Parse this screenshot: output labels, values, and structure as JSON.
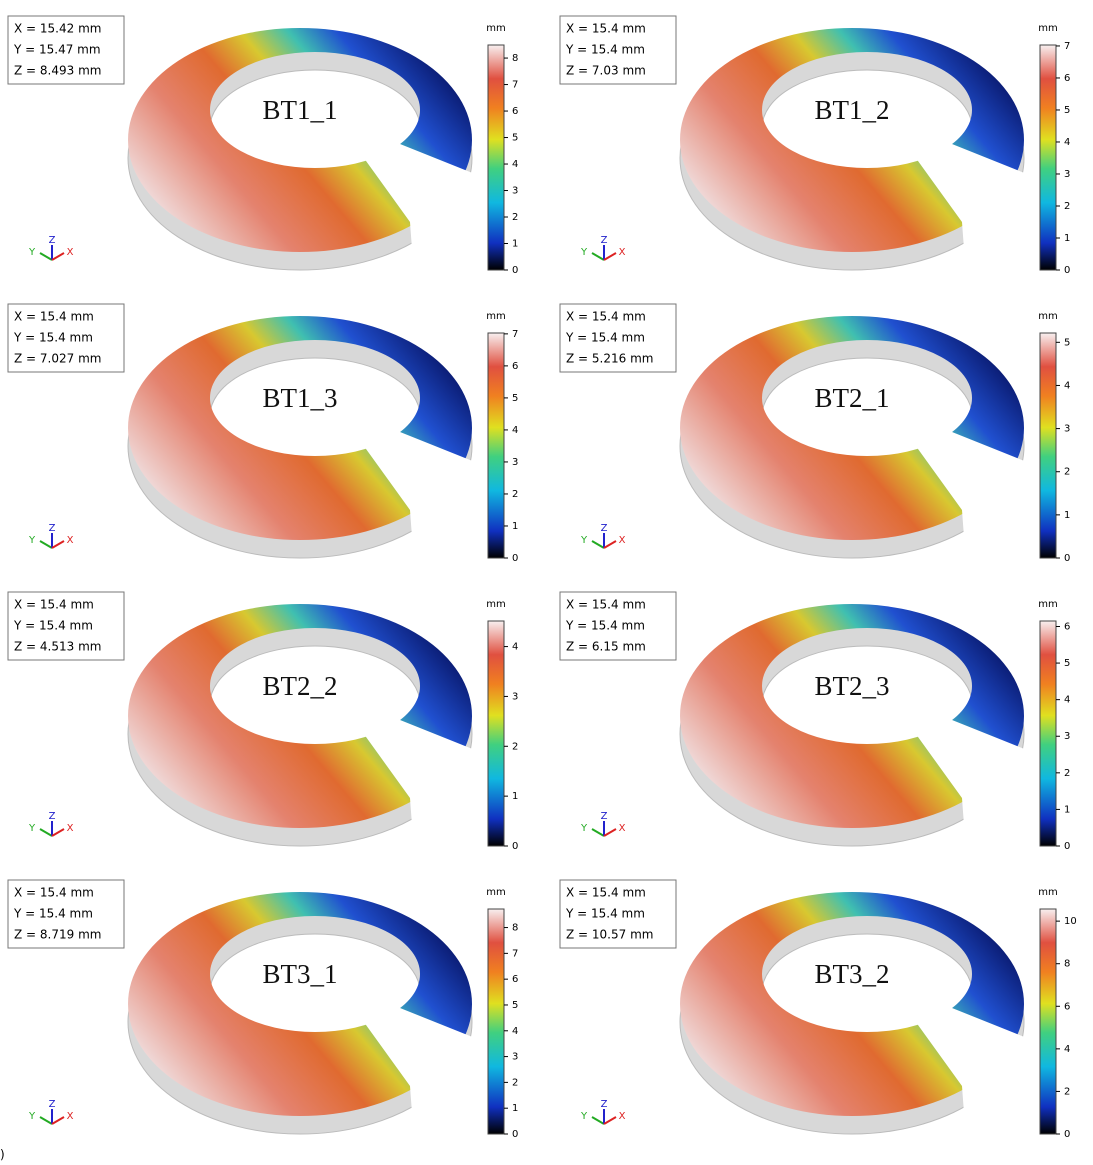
{
  "triad_labels": [
    "Y",
    "Z",
    "X"
  ],
  "panels": [
    {
      "label": "BT1_1",
      "readout": [
        "X = 15.42 mm",
        "Y = 15.47 mm",
        "Z = 8.493 mm"
      ],
      "colorbar": {
        "unit": "mm",
        "range": [
          0,
          8.493
        ],
        "ticks": [
          0,
          1,
          2,
          3,
          4,
          5,
          6,
          7,
          8
        ]
      }
    },
    {
      "label": "BT1_2",
      "readout": [
        "X = 15.4 mm",
        "Y = 15.4 mm",
        "Z = 7.03 mm"
      ],
      "colorbar": {
        "unit": "mm",
        "range": [
          0,
          7.03
        ],
        "ticks": [
          0,
          1,
          2,
          3,
          4,
          5,
          6,
          7
        ]
      }
    },
    {
      "label": "BT1_3",
      "readout": [
        "X = 15.4 mm",
        "Y = 15.4 mm",
        "Z = 7.027 mm"
      ],
      "colorbar": {
        "unit": "mm",
        "range": [
          0,
          7.027
        ],
        "ticks": [
          0,
          1,
          2,
          3,
          4,
          5,
          6,
          7
        ]
      }
    },
    {
      "label": "BT2_1",
      "readout": [
        "X = 15.4 mm",
        "Y = 15.4 mm",
        "Z = 5.216 mm"
      ],
      "colorbar": {
        "unit": "mm",
        "range": [
          0,
          5.216
        ],
        "ticks": [
          0,
          1,
          2,
          3,
          4,
          5
        ]
      }
    },
    {
      "label": "BT2_2",
      "readout": [
        "X = 15.4 mm",
        "Y = 15.4 mm",
        "Z = 4.513 mm"
      ],
      "colorbar": {
        "unit": "mm",
        "range": [
          0,
          4.513
        ],
        "ticks": [
          0,
          1,
          2,
          3,
          4
        ]
      }
    },
    {
      "label": "BT2_3",
      "readout": [
        "X = 15.4 mm",
        "Y = 15.4 mm",
        "Z = 6.15 mm"
      ],
      "colorbar": {
        "unit": "mm",
        "range": [
          0,
          6.15
        ],
        "ticks": [
          0,
          1,
          2,
          3,
          4,
          5,
          6
        ]
      }
    },
    {
      "label": "BT3_1",
      "readout": [
        "X = 15.4 mm",
        "Y = 15.4 mm",
        "Z = 8.719 mm"
      ],
      "colorbar": {
        "unit": "mm",
        "range": [
          0,
          8.719
        ],
        "ticks": [
          0,
          1,
          2,
          3,
          4,
          5,
          6,
          7,
          8
        ]
      }
    },
    {
      "label": "BT3_2",
      "readout": [
        "X = 15.4 mm",
        "Y = 15.4 mm",
        "Z = 10.57 mm"
      ],
      "colorbar": {
        "unit": "mm",
        "range": [
          0,
          10.57
        ],
        "ticks": [
          0,
          2,
          4,
          6,
          8,
          10
        ]
      }
    }
  ],
  "footer": ")"
}
